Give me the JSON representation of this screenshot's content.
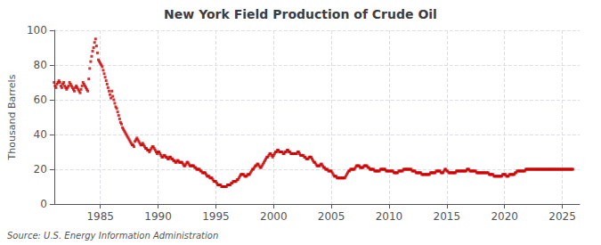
{
  "chart_data": {
    "type": "scatter",
    "title": "New York Field Production of Crude Oil",
    "ylabel": "Thousand Barrels",
    "source": "Source: U.S. Energy Information Administration",
    "color": "#cc0000",
    "marker": "square",
    "grid": true,
    "xlim": [
      1981.0,
      2026.5
    ],
    "xticks": [
      1985,
      1990,
      1995,
      2000,
      2005,
      2010,
      2015,
      2020,
      2025
    ],
    "ylim": [
      0,
      100
    ],
    "yticks": [
      0,
      20,
      40,
      60,
      80,
      100
    ],
    "x": [
      1981,
      1981.0833333333333,
      1981.1666666666667,
      1981.25,
      1981.3333333333333,
      1981.4166666666667,
      1981.5,
      1981.5833333333333,
      1981.6666666666667,
      1981.75,
      1981.8333333333333,
      1981.9166666666667,
      1982,
      1982.0833333333333,
      1982.1666666666667,
      1982.25,
      1982.3333333333333,
      1982.4166666666667,
      1982.5,
      1982.5833333333333,
      1982.6666666666667,
      1982.75,
      1982.8333333333333,
      1982.9166666666667,
      1983,
      1983.0833333333333,
      1983.1666666666667,
      1983.25,
      1983.3333333333333,
      1983.4166666666667,
      1983.5,
      1983.5833333333333,
      1983.6666666666667,
      1983.75,
      1983.8333333333333,
      1983.9166666666667,
      1984,
      1984.0833333333333,
      1984.1666666666667,
      1984.25,
      1984.3333333333333,
      1984.4166666666667,
      1984.5,
      1984.5833333333333,
      1984.6666666666667,
      1984.75,
      1984.8333333333333,
      1984.9166666666667,
      1985,
      1985.0833333333333,
      1985.1666666666667,
      1985.25,
      1985.3333333333333,
      1985.4166666666667,
      1985.5,
      1985.5833333333333,
      1985.6666666666667,
      1985.75,
      1985.8333333333333,
      1985.9166666666667,
      1986,
      1986.0833333333333,
      1986.1666666666667,
      1986.25,
      1986.3333333333333,
      1986.4166666666667,
      1986.5,
      1986.5833333333333,
      1986.6666666666667,
      1986.75,
      1986.8333333333333,
      1986.9166666666667,
      1987,
      1987.0833333333333,
      1987.1666666666667,
      1987.25,
      1987.3333333333333,
      1987.4166666666667,
      1987.5,
      1987.5833333333333,
      1987.6666666666667,
      1987.75,
      1987.8333333333333,
      1987.9166666666667,
      1988,
      1988.0833333333333,
      1988.1666666666667,
      1988.25,
      1988.3333333333333,
      1988.4166666666667,
      1988.5,
      1988.5833333333333,
      1988.6666666666667,
      1988.75,
      1988.8333333333333,
      1988.9166666666667,
      1989,
      1989.0833333333333,
      1989.1666666666667,
      1989.25,
      1989.3333333333333,
      1989.4166666666667,
      1989.5,
      1989.5833333333333,
      1989.6666666666667,
      1989.75,
      1989.8333333333333,
      1989.9166666666667,
      1990,
      1990.0833333333333,
      1990.1666666666667,
      1990.25,
      1990.3333333333333,
      1990.4166666666667,
      1990.5,
      1990.5833333333333,
      1990.6666666666667,
      1990.75,
      1990.8333333333333,
      1990.9166666666667,
      1991,
      1991.0833333333333,
      1991.1666666666667,
      1991.25,
      1991.3333333333333,
      1991.4166666666667,
      1991.5,
      1991.5833333333333,
      1991.6666666666667,
      1991.75,
      1991.8333333333333,
      1991.9166666666667,
      1992,
      1992.0833333333333,
      1992.1666666666667,
      1992.25,
      1992.3333333333333,
      1992.4166666666667,
      1992.5,
      1992.5833333333333,
      1992.6666666666667,
      1992.75,
      1992.8333333333333,
      1992.9166666666667,
      1993,
      1993.0833333333333,
      1993.1666666666667,
      1993.25,
      1993.3333333333333,
      1993.4166666666667,
      1993.5,
      1993.5833333333333,
      1993.6666666666667,
      1993.75,
      1993.8333333333333,
      1993.9166666666667,
      1994,
      1994.0833333333333,
      1994.1666666666667,
      1994.25,
      1994.3333333333333,
      1994.4166666666667,
      1994.5,
      1994.5833333333333,
      1994.6666666666667,
      1994.75,
      1994.8333333333333,
      1994.9166666666667,
      1995,
      1995.0833333333333,
      1995.1666666666667,
      1995.25,
      1995.3333333333333,
      1995.4166666666667,
      1995.5,
      1995.5833333333333,
      1995.6666666666667,
      1995.75,
      1995.8333333333333,
      1995.9166666666667,
      1996,
      1996.0833333333333,
      1996.1666666666667,
      1996.25,
      1996.3333333333333,
      1996.4166666666667,
      1996.5,
      1996.5833333333333,
      1996.6666666666667,
      1996.75,
      1996.8333333333333,
      1996.9166666666667,
      1997,
      1997.0833333333333,
      1997.1666666666667,
      1997.25,
      1997.3333333333333,
      1997.4166666666667,
      1997.5,
      1997.5833333333333,
      1997.6666666666667,
      1997.75,
      1997.8333333333333,
      1997.9166666666667,
      1998,
      1998.0833333333333,
      1998.1666666666667,
      1998.25,
      1998.3333333333333,
      1998.4166666666667,
      1998.5,
      1998.5833333333333,
      1998.6666666666667,
      1998.75,
      1998.8333333333333,
      1998.9166666666667,
      1999,
      1999.0833333333333,
      1999.1666666666667,
      1999.25,
      1999.3333333333333,
      1999.4166666666667,
      1999.5,
      1999.5833333333333,
      1999.6666666666667,
      1999.75,
      1999.8333333333333,
      1999.9166666666667,
      2000,
      2000.0833333333333,
      2000.1666666666667,
      2000.25,
      2000.3333333333333,
      2000.4166666666667,
      2000.5,
      2000.5833333333333,
      2000.6666666666667,
      2000.75,
      2000.8333333333333,
      2000.9166666666667,
      2001,
      2001.0833333333333,
      2001.1666666666667,
      2001.25,
      2001.3333333333333,
      2001.4166666666667,
      2001.5,
      2001.5833333333333,
      2001.6666666666667,
      2001.75,
      2001.8333333333333,
      2001.9166666666667,
      2002,
      2002.0833333333333,
      2002.1666666666667,
      2002.25,
      2002.3333333333333,
      2002.4166666666667,
      2002.5,
      2002.5833333333333,
      2002.6666666666667,
      2002.75,
      2002.8333333333333,
      2002.9166666666667,
      2003,
      2003.0833333333333,
      2003.1666666666667,
      2003.25,
      2003.3333333333333,
      2003.4166666666667,
      2003.5,
      2003.5833333333333,
      2003.6666666666667,
      2003.75,
      2003.8333333333333,
      2003.9166666666667,
      2004,
      2004.0833333333333,
      2004.1666666666667,
      2004.25,
      2004.3333333333333,
      2004.4166666666667,
      2004.5,
      2004.5833333333333,
      2004.6666666666667,
      2004.75,
      2004.8333333333333,
      2004.9166666666667,
      2005,
      2005.0833333333333,
      2005.1666666666667,
      2005.25,
      2005.3333333333333,
      2005.4166666666667,
      2005.5,
      2005.5833333333333,
      2005.6666666666667,
      2005.75,
      2005.8333333333333,
      2005.9166666666667,
      2006,
      2006.0833333333333,
      2006.1666666666667,
      2006.25,
      2006.3333333333333,
      2006.4166666666667,
      2006.5,
      2006.5833333333333,
      2006.6666666666667,
      2006.75,
      2006.8333333333333,
      2006.9166666666667,
      2007,
      2007.0833333333333,
      2007.1666666666667,
      2007.25,
      2007.3333333333333,
      2007.4166666666667,
      2007.5,
      2007.5833333333333,
      2007.6666666666667,
      2007.75,
      2007.8333333333333,
      2007.9166666666667,
      2008,
      2008.0833333333333,
      2008.1666666666667,
      2008.25,
      2008.3333333333333,
      2008.4166666666667,
      2008.5,
      2008.5833333333333,
      2008.6666666666667,
      2008.75,
      2008.8333333333333,
      2008.9166666666667,
      2009,
      2009.0833333333333,
      2009.1666666666667,
      2009.25,
      2009.3333333333333,
      2009.4166666666667,
      2009.5,
      2009.5833333333333,
      2009.6666666666667,
      2009.75,
      2009.8333333333333,
      2009.9166666666667,
      2010,
      2010.0833333333333,
      2010.1666666666667,
      2010.25,
      2010.3333333333333,
      2010.4166666666667,
      2010.5,
      2010.5833333333333,
      2010.6666666666667,
      2010.75,
      2010.8333333333333,
      2010.9166666666667,
      2011,
      2011.0833333333333,
      2011.1666666666667,
      2011.25,
      2011.3333333333333,
      2011.4166666666667,
      2011.5,
      2011.5833333333333,
      2011.6666666666667,
      2011.75,
      2011.8333333333333,
      2011.9166666666667,
      2012,
      2012.0833333333333,
      2012.1666666666667,
      2012.25,
      2012.3333333333333,
      2012.4166666666667,
      2012.5,
      2012.5833333333333,
      2012.6666666666667,
      2012.75,
      2012.8333333333333,
      2012.9166666666667,
      2013,
      2013.0833333333333,
      2013.1666666666667,
      2013.25,
      2013.3333333333333,
      2013.4166666666667,
      2013.5,
      2013.5833333333333,
      2013.6666666666667,
      2013.75,
      2013.8333333333333,
      2013.9166666666667,
      2014,
      2014.0833333333333,
      2014.1666666666667,
      2014.25,
      2014.3333333333333,
      2014.4166666666667,
      2014.5,
      2014.5833333333333,
      2014.6666666666667,
      2014.75,
      2014.8333333333333,
      2014.9166666666667,
      2015,
      2015.0833333333333,
      2015.1666666666667,
      2015.25,
      2015.3333333333333,
      2015.4166666666667,
      2015.5,
      2015.5833333333333,
      2015.6666666666667,
      2015.75,
      2015.8333333333333,
      2015.9166666666667,
      2016,
      2016.0833333333333,
      2016.1666666666667,
      2016.25,
      2016.3333333333333,
      2016.4166666666667,
      2016.5,
      2016.5833333333333,
      2016.6666666666667,
      2016.75,
      2016.8333333333333,
      2016.9166666666667,
      2017,
      2017.0833333333333,
      2017.1666666666667,
      2017.25,
      2017.3333333333333,
      2017.4166666666667,
      2017.5,
      2017.5833333333333,
      2017.6666666666667,
      2017.75,
      2017.8333333333333,
      2017.9166666666667,
      2018,
      2018.0833333333333,
      2018.1666666666667,
      2018.25,
      2018.3333333333333,
      2018.4166666666667,
      2018.5,
      2018.5833333333333,
      2018.6666666666667,
      2018.75,
      2018.8333333333333,
      2018.9166666666667,
      2019,
      2019.0833333333333,
      2019.1666666666667,
      2019.25,
      2019.3333333333333,
      2019.4166666666667,
      2019.5,
      2019.5833333333333,
      2019.6666666666667,
      2019.75,
      2019.8333333333333,
      2019.9166666666667,
      2020,
      2020.0833333333333,
      2020.1666666666667,
      2020.25,
      2020.3333333333333,
      2020.4166666666667,
      2020.5,
      2020.5833333333333,
      2020.6666666666667,
      2020.75,
      2020.8333333333333,
      2020.9166666666667,
      2021,
      2021.0833333333333,
      2021.1666666666667,
      2021.25,
      2021.3333333333333,
      2021.4166666666667,
      2021.5,
      2021.5833333333333,
      2021.6666666666667,
      2021.75,
      2021.8333333333333,
      2021.9166666666667,
      2022,
      2022.0833333333333,
      2022.1666666666667,
      2022.25,
      2022.3333333333333,
      2022.4166666666667,
      2022.5,
      2022.5833333333333,
      2022.6666666666667,
      2022.75,
      2022.8333333333333,
      2022.9166666666667,
      2023,
      2023.0833333333333,
      2023.1666666666667,
      2023.25,
      2023.3333333333333,
      2023.4166666666667,
      2023.5,
      2023.5833333333333,
      2023.6666666666667,
      2023.75,
      2023.8333333333333,
      2023.9166666666667,
      2024,
      2024.0833333333333,
      2024.1666666666667,
      2024.25,
      2024.3333333333333,
      2024.4166666666667,
      2024.5,
      2024.5833333333333,
      2024.6666666666667,
      2024.75,
      2024.8333333333333,
      2024.9166666666667,
      2025,
      2025.0833333333333,
      2025.1666666666667,
      2025.25,
      2025.3333333333333,
      2025.4166666666667,
      2025.5,
      2025.5833333333333,
      2025.6666666666667,
      2025.75,
      2025.8333333333333,
      2025.9166666666667
    ],
    "values": [
      70,
      68,
      67,
      69,
      70,
      71,
      70,
      68,
      67,
      69,
      70,
      68,
      67,
      66,
      67,
      68,
      70,
      69,
      68,
      67,
      66,
      65,
      67,
      68,
      67,
      66,
      65,
      64,
      66,
      68,
      70,
      69,
      68,
      67,
      66,
      65,
      72,
      78,
      82,
      85,
      88,
      90,
      93,
      95,
      91,
      87,
      83,
      82,
      81,
      80,
      79,
      77,
      75,
      73,
      71,
      69,
      67,
      65,
      63,
      61,
      65,
      62,
      60,
      58,
      56,
      55,
      53,
      51,
      49,
      47,
      46,
      44,
      43,
      42,
      41,
      40,
      39,
      38,
      37,
      36,
      35,
      34,
      34,
      33,
      36,
      37,
      38,
      37,
      36,
      35,
      34,
      34,
      35,
      34,
      33,
      32,
      32,
      31,
      31,
      30,
      31,
      32,
      33,
      33,
      32,
      31,
      30,
      29,
      30,
      30,
      29,
      28,
      27,
      27,
      28,
      28,
      27,
      27,
      26,
      26,
      27,
      27,
      26,
      26,
      25,
      25,
      24,
      24,
      25,
      25,
      24,
      24,
      24,
      24,
      23,
      22,
      22,
      23,
      24,
      24,
      23,
      22,
      22,
      22,
      22,
      22,
      21,
      21,
      20,
      20,
      20,
      20,
      19,
      19,
      18,
      18,
      18,
      18,
      17,
      16,
      16,
      16,
      15,
      15,
      15,
      14,
      13,
      13,
      13,
      12,
      11,
      11,
      11,
      11,
      10,
      10,
      10,
      10,
      10,
      10,
      11,
      11,
      11,
      11,
      12,
      12,
      13,
      13,
      13,
      13,
      14,
      14,
      15,
      16,
      17,
      17,
      17,
      17,
      16,
      16,
      16,
      17,
      17,
      17,
      18,
      19,
      20,
      20,
      21,
      22,
      22,
      23,
      23,
      22,
      21,
      21,
      22,
      23,
      24,
      25,
      26,
      27,
      27,
      28,
      29,
      29,
      28,
      27,
      28,
      29,
      30,
      30,
      31,
      31,
      30,
      30,
      30,
      30,
      29,
      29,
      30,
      30,
      31,
      31,
      30,
      30,
      29,
      29,
      29,
      29,
      29,
      29,
      29,
      30,
      30,
      29,
      28,
      28,
      28,
      28,
      27,
      27,
      26,
      26,
      26,
      27,
      27,
      27,
      26,
      25,
      24,
      24,
      23,
      22,
      22,
      22,
      22,
      23,
      23,
      22,
      21,
      21,
      20,
      20,
      20,
      19,
      19,
      19,
      19,
      18,
      17,
      16,
      16,
      16,
      15,
      15,
      15,
      15,
      15,
      15,
      15,
      15,
      15,
      16,
      17,
      18,
      19,
      19,
      20,
      20,
      20,
      20,
      20,
      21,
      22,
      22,
      22,
      22,
      21,
      21,
      21,
      21,
      22,
      22,
      22,
      22,
      21,
      21,
      20,
      20,
      20,
      20,
      20,
      19,
      19,
      19,
      19,
      19,
      19,
      20,
      20,
      20,
      20,
      20,
      20,
      19,
      19,
      19,
      19,
      19,
      19,
      19,
      19,
      18,
      18,
      18,
      18,
      18,
      19,
      19,
      19,
      19,
      19,
      20,
      20,
      20,
      20,
      20,
      20,
      20,
      20,
      20,
      19,
      19,
      19,
      19,
      18,
      18,
      18,
      18,
      18,
      18,
      17,
      17,
      17,
      17,
      17,
      17,
      17,
      17,
      17,
      18,
      18,
      18,
      18,
      18,
      18,
      19,
      19,
      19,
      19,
      19,
      18,
      18,
      18,
      19,
      20,
      20,
      19,
      19,
      18,
      18,
      18,
      18,
      18,
      18,
      18,
      18,
      19,
      19,
      19,
      19,
      19,
      19,
      19,
      19,
      19,
      19,
      19,
      20,
      20,
      20,
      19,
      19,
      19,
      19,
      19,
      19,
      19,
      18,
      18,
      18,
      18,
      18,
      18,
      18,
      18,
      18,
      18,
      18,
      18,
      18,
      17,
      17,
      17,
      17,
      17,
      16,
      16,
      16,
      16,
      16,
      16,
      16,
      16,
      16,
      17,
      17,
      17,
      17,
      16,
      16,
      16,
      17,
      17,
      17,
      17,
      17,
      17,
      18,
      18,
      19,
      19,
      19,
      19,
      19,
      19,
      19,
      19,
      19,
      20,
      20,
      20,
      20,
      20,
      20,
      20,
      20,
      20,
      20,
      20,
      20,
      20,
      20,
      20,
      20,
      20,
      20,
      20,
      20,
      20,
      20,
      20,
      20,
      20,
      20,
      20,
      20,
      20,
      20,
      20,
      20,
      20,
      20,
      20,
      20,
      20,
      20,
      20,
      20,
      20,
      20,
      20,
      20,
      20,
      20,
      20,
      20,
      20,
      20
    ]
  }
}
